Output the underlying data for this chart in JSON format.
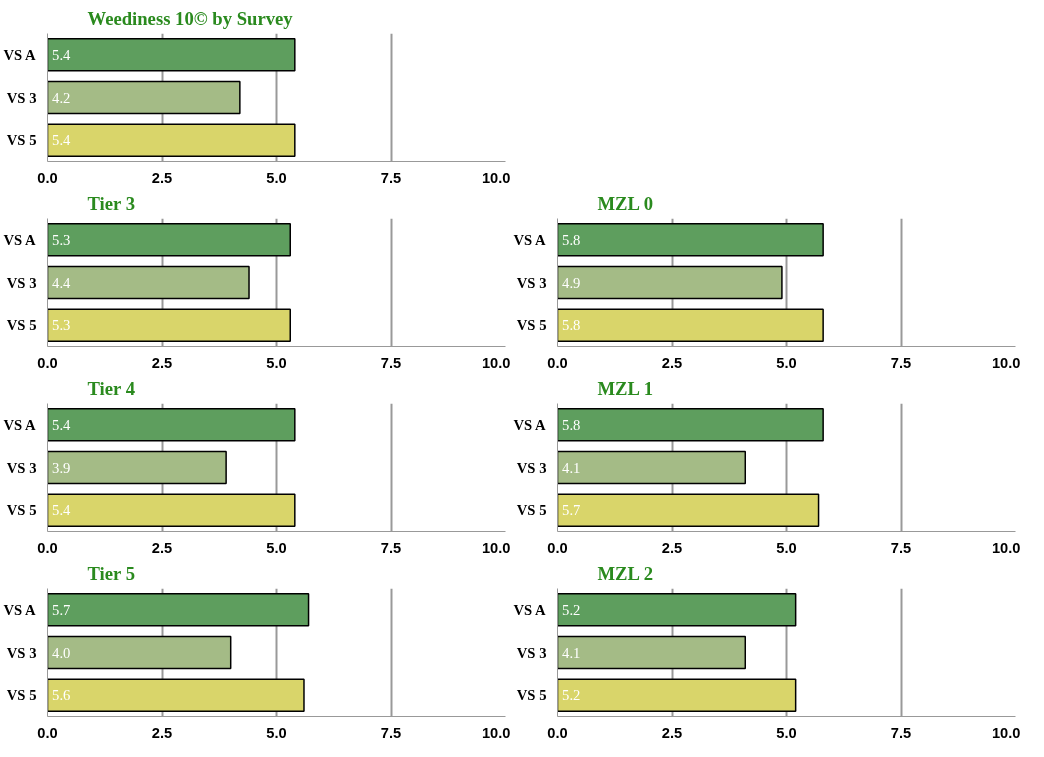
{
  "chart_data": [
    {
      "type": "bar",
      "orientation": "horizontal",
      "title": "Weediness 10© by Survey",
      "categories": [
        "VS A",
        "VS 3",
        "VS 5"
      ],
      "values": [
        5.4,
        4.2,
        5.4
      ],
      "value_labels": [
        "5.4",
        "4.2",
        "5.4"
      ],
      "colors": [
        "#5e9e5e",
        "#a4bb86",
        "#d9d56a"
      ],
      "xlim": [
        0,
        10
      ],
      "xticks": [
        {
          "value": 0,
          "label": "0.0"
        },
        {
          "value": 2.5,
          "label": "2.5"
        },
        {
          "value": 5,
          "label": "5.0"
        },
        {
          "value": 7.5,
          "label": "7.5"
        },
        {
          "value": 10,
          "label": "10.0"
        }
      ],
      "grid": "x"
    },
    {
      "type": "bar",
      "orientation": "horizontal",
      "title": "Tier 3",
      "categories": [
        "VS A",
        "VS 3",
        "VS 5"
      ],
      "values": [
        5.3,
        4.4,
        5.3
      ],
      "value_labels": [
        "5.3",
        "4.4",
        "5.3"
      ],
      "colors": [
        "#5e9e5e",
        "#a4bb86",
        "#d9d56a"
      ],
      "xlim": [
        0,
        10
      ],
      "xticks": [
        {
          "value": 0,
          "label": "0.0"
        },
        {
          "value": 2.5,
          "label": "2.5"
        },
        {
          "value": 5,
          "label": "5.0"
        },
        {
          "value": 7.5,
          "label": "7.5"
        },
        {
          "value": 10,
          "label": "10.0"
        }
      ],
      "grid": "x"
    },
    {
      "type": "bar",
      "orientation": "horizontal",
      "title": "MZL 0",
      "categories": [
        "VS A",
        "VS 3",
        "VS 5"
      ],
      "values": [
        5.8,
        4.9,
        5.8
      ],
      "value_labels": [
        "5.8",
        "4.9",
        "5.8"
      ],
      "colors": [
        "#5e9e5e",
        "#a4bb86",
        "#d9d56a"
      ],
      "xlim": [
        0,
        10
      ],
      "xticks": [
        {
          "value": 0,
          "label": "0.0"
        },
        {
          "value": 2.5,
          "label": "2.5"
        },
        {
          "value": 5,
          "label": "5.0"
        },
        {
          "value": 7.5,
          "label": "7.5"
        },
        {
          "value": 10,
          "label": "10.0"
        }
      ],
      "grid": "x"
    },
    {
      "type": "bar",
      "orientation": "horizontal",
      "title": "Tier 4",
      "categories": [
        "VS A",
        "VS 3",
        "VS 5"
      ],
      "values": [
        5.4,
        3.9,
        5.4
      ],
      "value_labels": [
        "5.4",
        "3.9",
        "5.4"
      ],
      "colors": [
        "#5e9e5e",
        "#a4bb86",
        "#d9d56a"
      ],
      "xlim": [
        0,
        10
      ],
      "xticks": [
        {
          "value": 0,
          "label": "0.0"
        },
        {
          "value": 2.5,
          "label": "2.5"
        },
        {
          "value": 5,
          "label": "5.0"
        },
        {
          "value": 7.5,
          "label": "7.5"
        },
        {
          "value": 10,
          "label": "10.0"
        }
      ],
      "grid": "x"
    },
    {
      "type": "bar",
      "orientation": "horizontal",
      "title": "MZL 1",
      "categories": [
        "VS A",
        "VS 3",
        "VS 5"
      ],
      "values": [
        5.8,
        4.1,
        5.7
      ],
      "value_labels": [
        "5.8",
        "4.1",
        "5.7"
      ],
      "colors": [
        "#5e9e5e",
        "#a4bb86",
        "#d9d56a"
      ],
      "xlim": [
        0,
        10
      ],
      "xticks": [
        {
          "value": 0,
          "label": "0.0"
        },
        {
          "value": 2.5,
          "label": "2.5"
        },
        {
          "value": 5,
          "label": "5.0"
        },
        {
          "value": 7.5,
          "label": "7.5"
        },
        {
          "value": 10,
          "label": "10.0"
        }
      ],
      "grid": "x"
    },
    {
      "type": "bar",
      "orientation": "horizontal",
      "title": "Tier 5",
      "categories": [
        "VS A",
        "VS 3",
        "VS 5"
      ],
      "values": [
        5.7,
        4.0,
        5.6
      ],
      "value_labels": [
        "5.7",
        "4.0",
        "5.6"
      ],
      "colors": [
        "#5e9e5e",
        "#a4bb86",
        "#d9d56a"
      ],
      "xlim": [
        0,
        10
      ],
      "xticks": [
        {
          "value": 0,
          "label": "0.0"
        },
        {
          "value": 2.5,
          "label": "2.5"
        },
        {
          "value": 5,
          "label": "5.0"
        },
        {
          "value": 7.5,
          "label": "7.5"
        },
        {
          "value": 10,
          "label": "10.0"
        }
      ],
      "grid": "x"
    },
    {
      "type": "bar",
      "orientation": "horizontal",
      "title": "MZL 2",
      "categories": [
        "VS A",
        "VS 3",
        "VS 5"
      ],
      "values": [
        5.2,
        4.1,
        5.2
      ],
      "value_labels": [
        "5.2",
        "4.1",
        "5.2"
      ],
      "colors": [
        "#5e9e5e",
        "#a4bb86",
        "#d9d56a"
      ],
      "xlim": [
        0,
        10
      ],
      "xticks": [
        {
          "value": 0,
          "label": "0.0"
        },
        {
          "value": 2.5,
          "label": "2.5"
        },
        {
          "value": 5,
          "label": "5.0"
        },
        {
          "value": 7.5,
          "label": "7.5"
        },
        {
          "value": 10,
          "label": "10.0"
        }
      ],
      "grid": "x"
    }
  ]
}
